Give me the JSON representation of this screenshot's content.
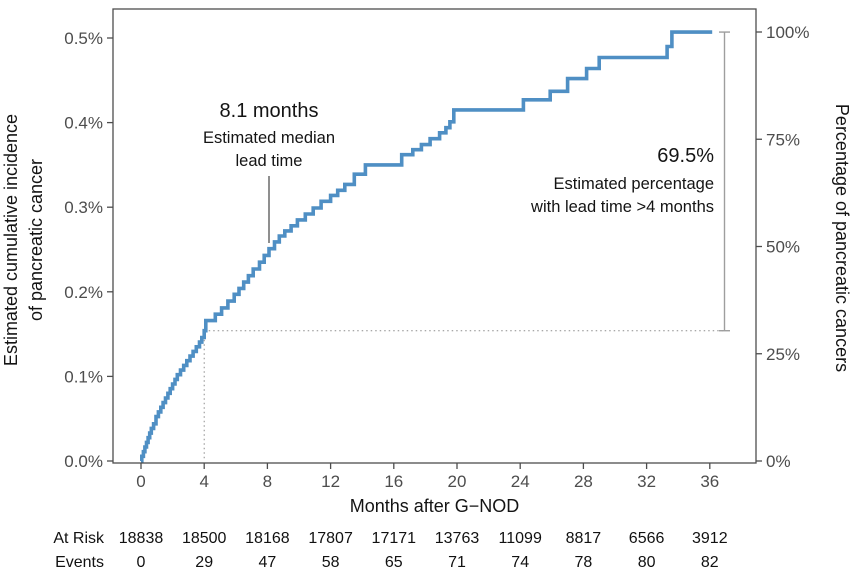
{
  "figure": {
    "background": "#ffffff",
    "curve_color": "#4f8fc4",
    "axis_line_color": "#4d4d4d",
    "tick_text_color": "#4d4d4d",
    "text_color": "#141414",
    "dotted_line_color": "#8c8c8c",
    "bracket_color": "#9e9e9e",
    "median_line_color": "#333333"
  },
  "chart_data": {
    "type": "line",
    "style": "step",
    "xlabel": "Months after G−NOD",
    "ylabel_left_lines": [
      "Estimated cumulative incidence",
      "of pancreatic cancer"
    ],
    "ylabel_right": "Percentage of pancreatic cancers",
    "x_ticks": [
      0,
      4,
      8,
      12,
      16,
      20,
      24,
      28,
      32,
      36
    ],
    "xlim": [
      -1.8,
      38.9
    ],
    "ylim_left_pct": [
      0,
      0.535
    ],
    "y_left_ticks": [
      {
        "value": 0.0,
        "label": "0.0%"
      },
      {
        "value": 0.1,
        "label": "0.1%"
      },
      {
        "value": 0.2,
        "label": "0.2%"
      },
      {
        "value": 0.3,
        "label": "0.3%"
      },
      {
        "value": 0.4,
        "label": "0.4%"
      },
      {
        "value": 0.5,
        "label": "0.5%"
      }
    ],
    "y_right_ticks": [
      {
        "value": 0,
        "label": "0%"
      },
      {
        "value": 25,
        "label": "25%"
      },
      {
        "value": 50,
        "label": "50%"
      },
      {
        "value": 75,
        "label": "75%"
      },
      {
        "value": 100,
        "label": "100%"
      }
    ],
    "grid": false,
    "legend": "none",
    "series": [
      {
        "name": "Estimated cumulative incidence of pancreatic cancer",
        "color": "#4f8fc4",
        "end_month": 36.15,
        "points_month_pct": [
          [
            0.05,
            0.0055
          ],
          [
            0.15,
            0.011
          ],
          [
            0.25,
            0.0165
          ],
          [
            0.35,
            0.022
          ],
          [
            0.45,
            0.0275
          ],
          [
            0.55,
            0.033
          ],
          [
            0.65,
            0.0385
          ],
          [
            0.8,
            0.044
          ],
          [
            0.95,
            0.0525
          ],
          [
            1.1,
            0.058
          ],
          [
            1.25,
            0.0635
          ],
          [
            1.4,
            0.069
          ],
          [
            1.55,
            0.0745
          ],
          [
            1.7,
            0.08
          ],
          [
            1.85,
            0.0855
          ],
          [
            2.0,
            0.091
          ],
          [
            2.15,
            0.0965
          ],
          [
            2.3,
            0.102
          ],
          [
            2.5,
            0.1075
          ],
          [
            2.7,
            0.113
          ],
          [
            2.9,
            0.1185
          ],
          [
            3.1,
            0.124
          ],
          [
            3.3,
            0.1295
          ],
          [
            3.5,
            0.135
          ],
          [
            3.7,
            0.1405
          ],
          [
            3.85,
            0.146
          ],
          [
            4.0,
            0.154
          ],
          [
            4.1,
            0.166
          ],
          [
            4.7,
            0.1735
          ],
          [
            5.1,
            0.181
          ],
          [
            5.5,
            0.189
          ],
          [
            5.9,
            0.197
          ],
          [
            6.2,
            0.204
          ],
          [
            6.5,
            0.2115
          ],
          [
            6.8,
            0.219
          ],
          [
            7.1,
            0.227
          ],
          [
            7.5,
            0.235
          ],
          [
            7.8,
            0.243
          ],
          [
            8.1,
            0.251
          ],
          [
            8.45,
            0.259
          ],
          [
            8.75,
            0.266
          ],
          [
            9.1,
            0.272
          ],
          [
            9.5,
            0.278
          ],
          [
            9.9,
            0.285
          ],
          [
            10.4,
            0.292
          ],
          [
            10.9,
            0.299
          ],
          [
            11.4,
            0.307
          ],
          [
            12.0,
            0.314
          ],
          [
            12.45,
            0.32
          ],
          [
            12.9,
            0.327
          ],
          [
            13.5,
            0.339
          ],
          [
            14.2,
            0.35
          ],
          [
            16.5,
            0.362
          ],
          [
            17.2,
            0.368
          ],
          [
            17.75,
            0.374
          ],
          [
            18.3,
            0.381
          ],
          [
            18.9,
            0.388
          ],
          [
            19.3,
            0.394
          ],
          [
            19.55,
            0.401
          ],
          [
            19.8,
            0.415
          ],
          [
            24.2,
            0.427
          ],
          [
            25.9,
            0.437
          ],
          [
            27.0,
            0.452
          ],
          [
            28.2,
            0.464
          ],
          [
            29.0,
            0.477
          ],
          [
            33.3,
            0.49
          ],
          [
            33.6,
            0.507
          ]
        ]
      }
    ],
    "reference": {
      "lead_time_cutoff_month": 4,
      "incidence_at_cutoff_pct": 0.154,
      "median_lead_time_months": 8.1,
      "final_incidence_pct": 0.507,
      "pct_with_lead_time_gt4_months": 69.5
    },
    "annotations": {
      "median": {
        "headline": "8.1 months",
        "line1": "Estimated median",
        "line2": "lead time"
      },
      "lead_time": {
        "headline": "69.5%",
        "line1": "Estimated percentage",
        "line2": "with lead time >4 months"
      }
    },
    "risk_table": {
      "row_labels": {
        "at_risk": "At Risk",
        "events": "Events"
      },
      "months": [
        0,
        4,
        8,
        12,
        16,
        20,
        24,
        28,
        32,
        36
      ],
      "at_risk": [
        "18838",
        "18500",
        "18168",
        "17807",
        "17171",
        "13763",
        "11099",
        "8817",
        "6566",
        "3912"
      ],
      "events": [
        "0",
        "29",
        "47",
        "58",
        "65",
        "71",
        "74",
        "78",
        "80",
        "82"
      ]
    }
  }
}
